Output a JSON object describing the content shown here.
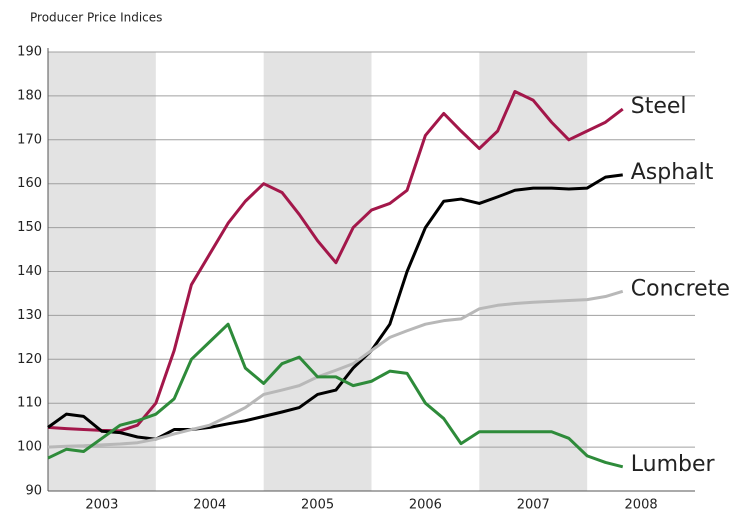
{
  "chart_data": {
    "type": "line",
    "title": "Producer Price Indices",
    "x": [
      2003,
      2003.17,
      2003.33,
      2003.5,
      2003.67,
      2003.83,
      2004,
      2004.17,
      2004.33,
      2004.5,
      2004.67,
      2004.83,
      2005,
      2005.17,
      2005.33,
      2005.5,
      2005.67,
      2005.83,
      2006,
      2006.17,
      2006.33,
      2006.5,
      2006.67,
      2006.83,
      2007,
      2007.17,
      2007.33,
      2007.5,
      2007.67,
      2007.83,
      2008,
      2008.17,
      2008.33
    ],
    "series": [
      {
        "name": "Steel",
        "color": "#a3174a",
        "values": [
          104.5,
          104.2,
          104,
          103.8,
          103.7,
          105,
          110,
          122,
          137,
          144,
          151,
          156,
          160,
          158,
          153,
          147,
          142,
          150,
          154,
          155.5,
          158.5,
          171,
          176,
          172,
          168,
          172,
          181,
          179,
          174,
          170,
          172,
          174,
          177
        ]
      },
      {
        "name": "Asphalt",
        "color": "#000000",
        "values": [
          104.5,
          107.5,
          107,
          103.6,
          103.3,
          102.3,
          101.8,
          104,
          104,
          104.5,
          105.3,
          106,
          107,
          108,
          109,
          112,
          113,
          118,
          122,
          128,
          140,
          150,
          156,
          156.5,
          155.5,
          157,
          158.5,
          159,
          159,
          158.8,
          159,
          161.5,
          162
        ]
      },
      {
        "name": "Concrete",
        "color": "#b8b8b8",
        "values": [
          100,
          100.2,
          100.3,
          100.5,
          100.7,
          101,
          101.8,
          103,
          104,
          105,
          107,
          109,
          112,
          113,
          114,
          116,
          117.5,
          119,
          122,
          125,
          126.5,
          128,
          128.8,
          129.2,
          131.5,
          132.3,
          132.7,
          133,
          133.2,
          133.4,
          133.6,
          134.3,
          135.5
        ]
      },
      {
        "name": "Lumber",
        "color": "#2e8b3a",
        "values": [
          97.5,
          99.5,
          99,
          102,
          105,
          106,
          107.5,
          111,
          120,
          124,
          128,
          118,
          114.5,
          119,
          120.5,
          116,
          116,
          114,
          115,
          117.3,
          116.8,
          110,
          106.5,
          100.8,
          103.5,
          103.5,
          103.5,
          103.5,
          103.5,
          102,
          98,
          96.5,
          95.5
        ]
      }
    ],
    "xlim": [
      2003,
      2009
    ],
    "xticks": [
      {
        "value": 2003.5,
        "label": "2003"
      },
      {
        "value": 2004.5,
        "label": "2004"
      },
      {
        "value": 2005.5,
        "label": "2005"
      },
      {
        "value": 2006.5,
        "label": "2006"
      },
      {
        "value": 2007.5,
        "label": "2007"
      },
      {
        "value": 2008.5,
        "label": "2008"
      }
    ],
    "bands": [
      [
        2003,
        2004
      ],
      [
        2005,
        2006
      ],
      [
        2007,
        2008
      ]
    ],
    "ylim": [
      90,
      190
    ],
    "yticks": [
      90,
      100,
      110,
      120,
      130,
      140,
      150,
      160,
      170,
      180,
      190
    ],
    "grid": true
  }
}
